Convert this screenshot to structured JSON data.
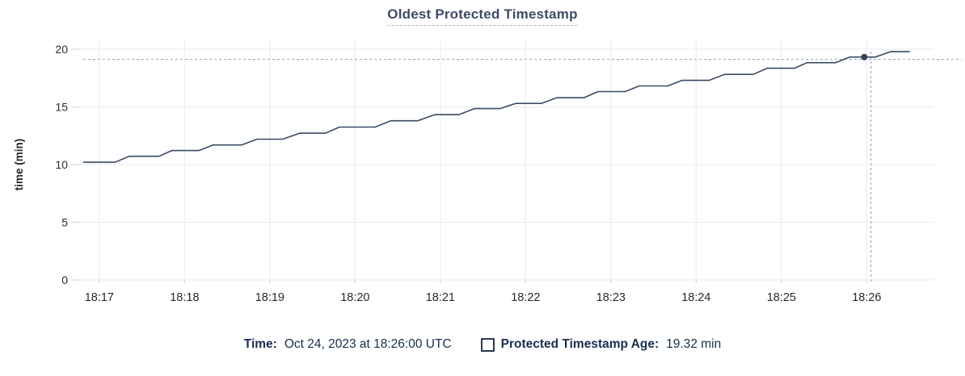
{
  "colors": {
    "line": "#3a4a66",
    "dot": "#33425c",
    "grid": "#ededf0",
    "tick_mark": "#d9dadd",
    "crosshair": "#9aadbc",
    "title_text": "#3e4b68",
    "title_underline": "#a6b0c3",
    "axis_text": "#2c2d31",
    "legend_text": "#16304f",
    "background": "#ffffff"
  },
  "chart_data": {
    "type": "line",
    "title": "Oldest Protected Timestamp",
    "xlabel": "",
    "ylabel": "time (min)",
    "ylim": [
      0,
      20
    ],
    "y_ticks": [
      0,
      5,
      10,
      15,
      20
    ],
    "x_ticks": [
      "18:17",
      "18:18",
      "18:19",
      "18:20",
      "18:21",
      "18:22",
      "18:23",
      "18:24",
      "18:25",
      "18:26"
    ],
    "x_domain": [
      "18:16:47",
      "18:26:47"
    ],
    "grid": true,
    "legend_position": "bottom",
    "series": [
      {
        "name": "Protected Timestamp Age",
        "unit": "min",
        "color": "#3a4a66",
        "points": [
          [
            "18:16:49",
            10.2
          ],
          [
            "18:17:11",
            10.2
          ],
          [
            "18:17:21",
            10.72
          ],
          [
            "18:17:42",
            10.72
          ],
          [
            "18:17:51",
            11.22
          ],
          [
            "18:18:10",
            11.22
          ],
          [
            "18:18:20",
            11.7
          ],
          [
            "18:18:40",
            11.7
          ],
          [
            "18:18:51",
            12.2
          ],
          [
            "18:19:09",
            12.2
          ],
          [
            "18:19:21",
            12.72
          ],
          [
            "18:19:39",
            12.72
          ],
          [
            "18:19:49",
            13.25
          ],
          [
            "18:20:14",
            13.25
          ],
          [
            "18:20:25",
            13.8
          ],
          [
            "18:20:44",
            13.8
          ],
          [
            "18:20:56",
            14.33
          ],
          [
            "18:21:13",
            14.33
          ],
          [
            "18:21:24",
            14.85
          ],
          [
            "18:21:42",
            14.85
          ],
          [
            "18:21:53",
            15.3
          ],
          [
            "18:22:11",
            15.3
          ],
          [
            "18:22:22",
            15.8
          ],
          [
            "18:22:41",
            15.8
          ],
          [
            "18:22:51",
            16.33
          ],
          [
            "18:23:10",
            16.33
          ],
          [
            "18:23:20",
            16.82
          ],
          [
            "18:23:40",
            16.82
          ],
          [
            "18:23:50",
            17.3
          ],
          [
            "18:24:09",
            17.3
          ],
          [
            "18:24:20",
            17.82
          ],
          [
            "18:24:40",
            17.82
          ],
          [
            "18:24:50",
            18.35
          ],
          [
            "18:25:09",
            18.35
          ],
          [
            "18:25:18",
            18.83
          ],
          [
            "18:25:38",
            18.83
          ],
          [
            "18:25:48",
            19.32
          ],
          [
            "18:26:06",
            19.32
          ],
          [
            "18:26:17",
            19.8
          ],
          [
            "18:26:30",
            19.8
          ]
        ]
      }
    ],
    "hover_point": {
      "x": "18:26:00",
      "y": 19.32
    },
    "crosshair": {
      "x": "18:26:03",
      "y": 19.12
    }
  },
  "legend": {
    "time_label": "Time:",
    "time_value": "Oct 24, 2023 at 18:26:00 UTC",
    "age_label": "Protected Timestamp Age:",
    "age_value": "19.32 min",
    "checkbox_checked": false
  }
}
